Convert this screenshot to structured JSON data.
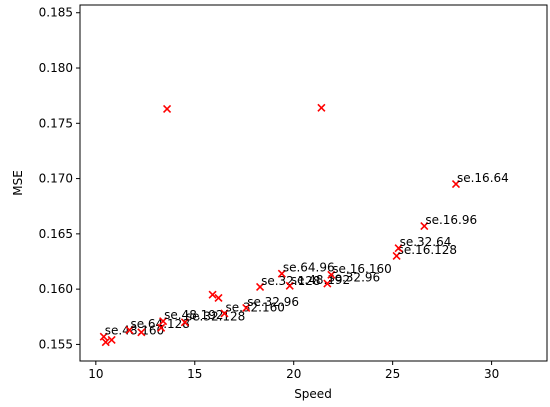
{
  "chart_data": {
    "type": "scatter",
    "title": "",
    "xlabel": "Speed",
    "ylabel": "MSE",
    "xlim": [
      9.2,
      32.8
    ],
    "ylim": [
      0.1535,
      0.1857
    ],
    "xticks": [
      10,
      15,
      20,
      25,
      30
    ],
    "yticks": [
      0.155,
      0.16,
      0.165,
      0.17,
      0.175,
      0.18,
      0.185
    ],
    "ytick_labels": [
      "0.155",
      "0.160",
      "0.165",
      "0.170",
      "0.175",
      "0.180",
      "0.185"
    ],
    "grid": false,
    "marker": "x",
    "marker_color": "#ff0000",
    "points": [
      {
        "x": 10.4,
        "y": 0.1557,
        "label": "se.48.160"
      },
      {
        "x": 10.5,
        "y": 0.1552,
        "label": ""
      },
      {
        "x": 10.8,
        "y": 0.1554,
        "label": ""
      },
      {
        "x": 11.7,
        "y": 0.1563,
        "label": "se.64.128"
      },
      {
        "x": 12.3,
        "y": 0.1561,
        "label": ""
      },
      {
        "x": 13.3,
        "y": 0.1565,
        "label": ""
      },
      {
        "x": 13.4,
        "y": 0.1571,
        "label": "se.48.192"
      },
      {
        "x": 14.5,
        "y": 0.157,
        "label": "se.32.128"
      },
      {
        "x": 15.9,
        "y": 0.1595,
        "label": ""
      },
      {
        "x": 16.2,
        "y": 0.1592,
        "label": ""
      },
      {
        "x": 16.5,
        "y": 0.1578,
        "label": "se.32.160"
      },
      {
        "x": 17.6,
        "y": 0.1583,
        "label": "se.32.96"
      },
      {
        "x": 18.3,
        "y": 0.1602,
        "label": "se.32.128"
      },
      {
        "x": 19.4,
        "y": 0.1614,
        "label": "se.64.96"
      },
      {
        "x": 19.8,
        "y": 0.1603,
        "label": "se.48.192"
      },
      {
        "x": 21.7,
        "y": 0.1605,
        "label": "se.32.96"
      },
      {
        "x": 21.9,
        "y": 0.1613,
        "label": "se.16.160"
      },
      {
        "x": 25.2,
        "y": 0.163,
        "label": "se.16.128"
      },
      {
        "x": 25.3,
        "y": 0.1637,
        "label": "se.32.64"
      },
      {
        "x": 26.6,
        "y": 0.1657,
        "label": "se.16.96"
      },
      {
        "x": 28.2,
        "y": 0.1695,
        "label": "se.16.64"
      },
      {
        "x": 13.6,
        "y": 0.1763,
        "label": ""
      },
      {
        "x": 21.4,
        "y": 0.1764,
        "label": ""
      }
    ]
  }
}
